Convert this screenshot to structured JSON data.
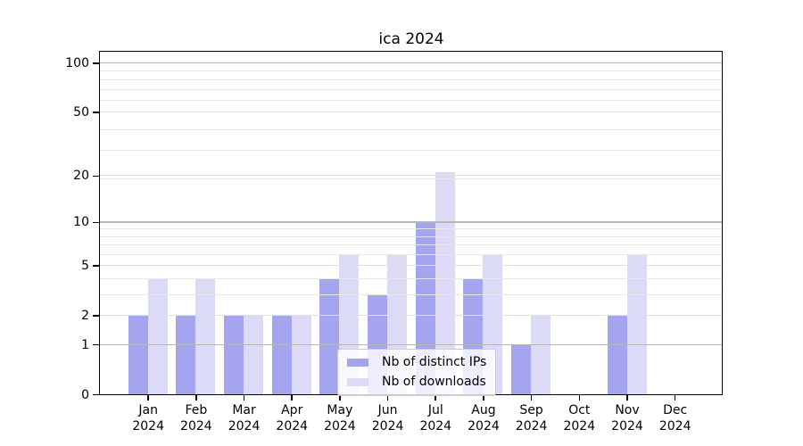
{
  "chart_data": {
    "type": "bar",
    "title": "ica 2024",
    "categories": [
      "Jan",
      "Feb",
      "Mar",
      "Apr",
      "May",
      "Jun",
      "Jul",
      "Aug",
      "Sep",
      "Oct",
      "Nov",
      "Dec"
    ],
    "category_year": "2024",
    "series": [
      {
        "name": "Nb of distinct IPs",
        "color": "#a5a5ef",
        "values": [
          2,
          2,
          2,
          2,
          4,
          3,
          10,
          4,
          1,
          0,
          2,
          0
        ]
      },
      {
        "name": "Nb of downloads",
        "color": "#dbdbf8",
        "values": [
          4,
          4,
          2,
          2,
          6,
          6,
          21,
          6,
          2,
          0,
          6,
          0
        ]
      }
    ],
    "yscale": "log(1+x)",
    "yticks": [
      0,
      1,
      2,
      5,
      10,
      20,
      50,
      100
    ],
    "yticks_emphasized": [
      1,
      10,
      100
    ],
    "ylim": [
      0,
      117
    ],
    "grid": true,
    "legend_position": "lower center"
  },
  "colors": {
    "grid_major": "#b6b6b6",
    "grid_minor": "#e7e7e7",
    "axis": "#000000",
    "background": "#ffffff"
  }
}
